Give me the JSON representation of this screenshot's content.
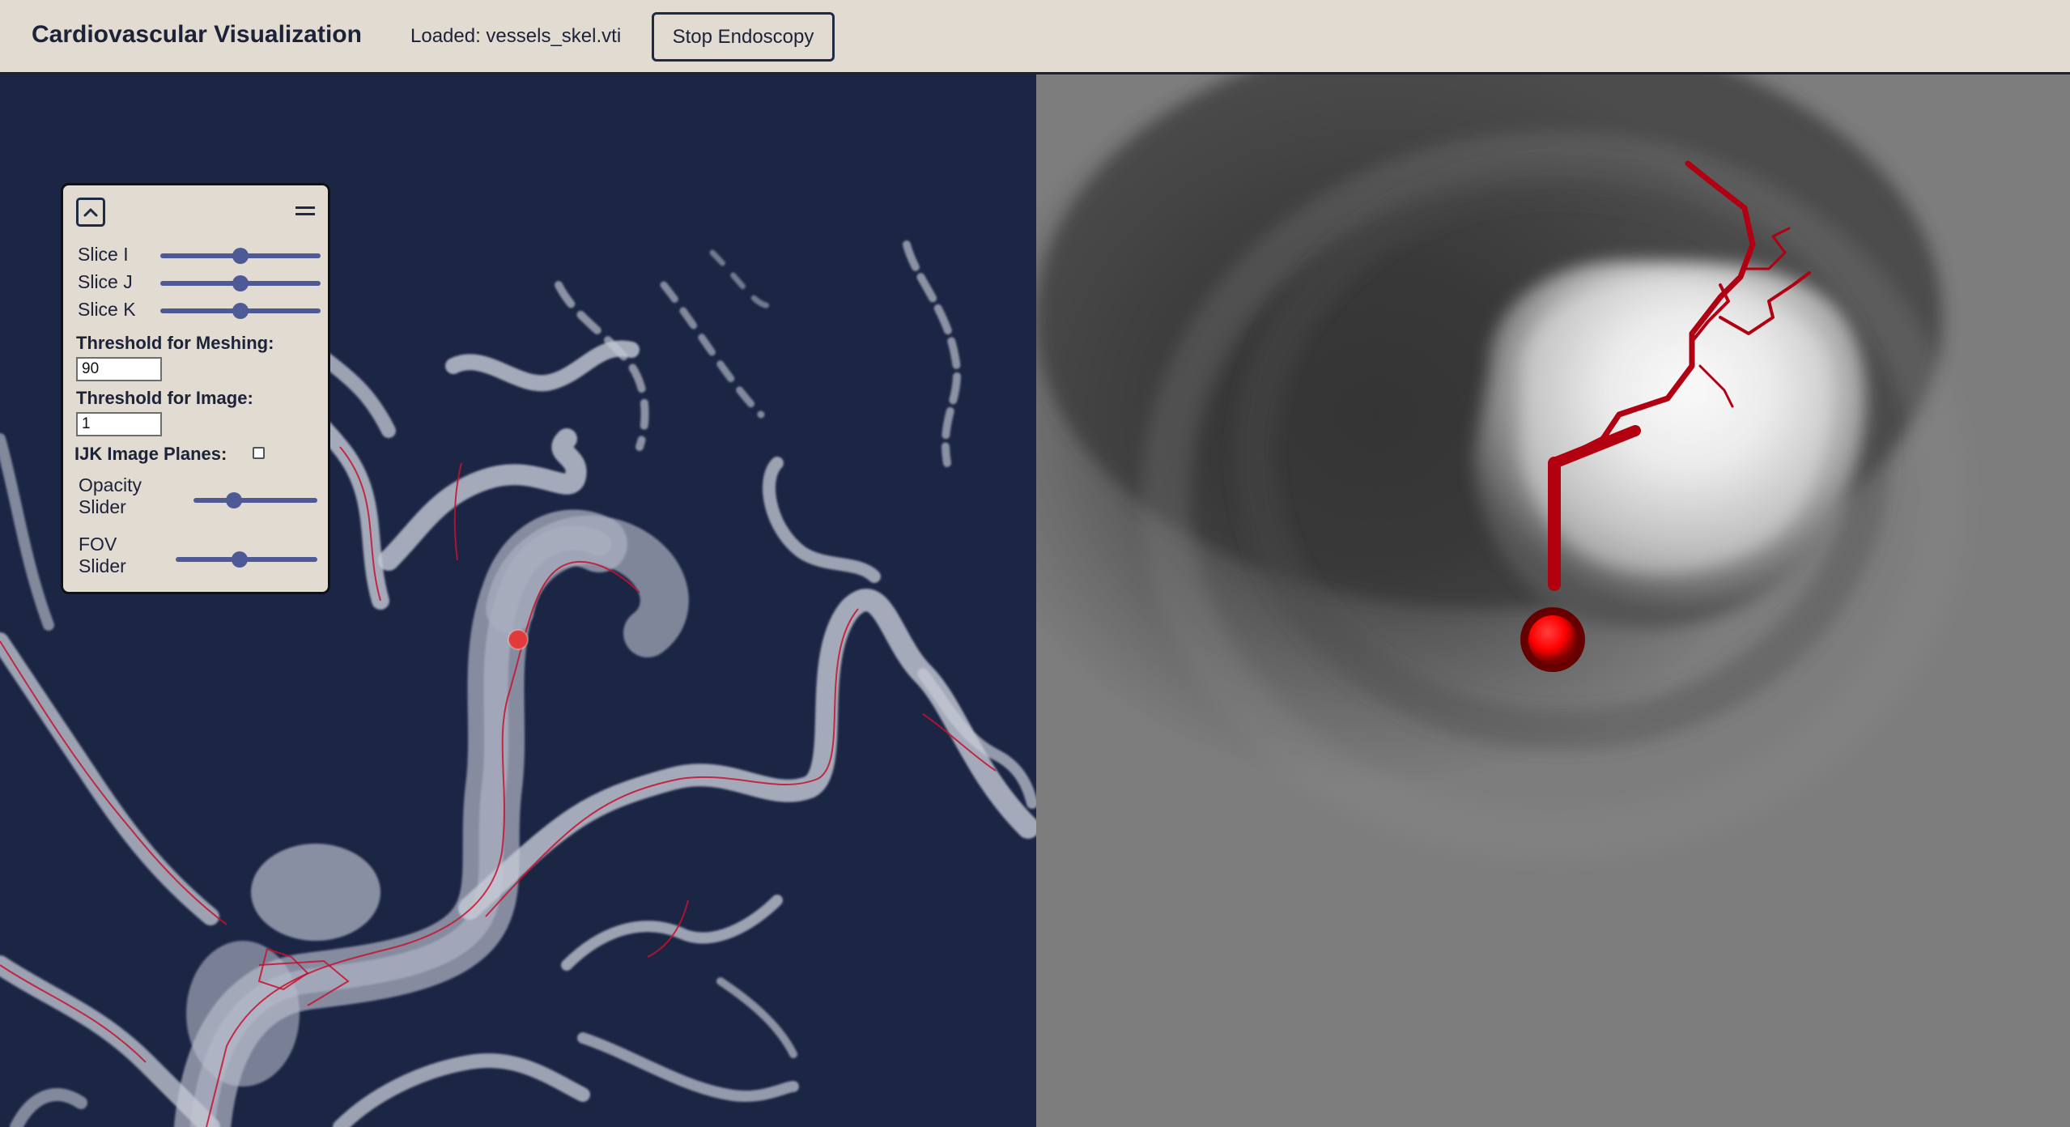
{
  "header": {
    "title": "Cardiovascular Visualization",
    "loaded_text": "Loaded: vessels_skel.vti",
    "stop_button_label": "Stop Endoscopy"
  },
  "panel": {
    "collapse_icon": "chevron-up-icon",
    "menu_icon": "hamburger-icon",
    "sliders": [
      {
        "label": "Slice I",
        "value": 0.5
      },
      {
        "label": "Slice J",
        "value": 0.5
      },
      {
        "label": "Slice K",
        "value": 0.5
      }
    ],
    "meshing_threshold_label": "Threshold for Meshing:",
    "meshing_threshold_value": "90",
    "image_threshold_label": "Threshold for Image:",
    "image_threshold_value": "1",
    "ijk_planes_label": "IJK Image Planes:",
    "ijk_planes_checked": false,
    "opacity_label_line1": "Opacity",
    "opacity_label_line2": "Slider",
    "opacity_value": 0.33,
    "fov_label_line1": "FOV",
    "fov_label_line2": "Slider",
    "fov_value": 0.45
  },
  "colors": {
    "topbar_bg": "#e1dbd2",
    "left_bg": "#1b2645",
    "accent_slider": "#4d5a95",
    "centerline": "#c8102e",
    "endoscope_marker": "#ff0000"
  }
}
